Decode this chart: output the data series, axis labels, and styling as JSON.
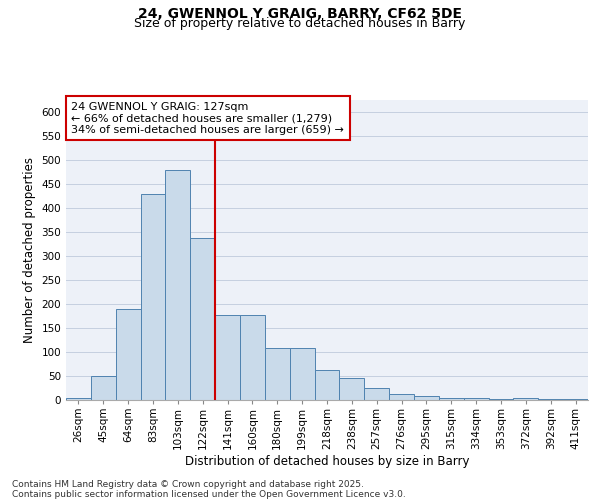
{
  "title1": "24, GWENNOL Y GRAIG, BARRY, CF62 5DE",
  "title2": "Size of property relative to detached houses in Barry",
  "xlabel": "Distribution of detached houses by size in Barry",
  "ylabel": "Number of detached properties",
  "categories": [
    "26sqm",
    "45sqm",
    "64sqm",
    "83sqm",
    "103sqm",
    "122sqm",
    "141sqm",
    "160sqm",
    "180sqm",
    "199sqm",
    "218sqm",
    "238sqm",
    "257sqm",
    "276sqm",
    "295sqm",
    "315sqm",
    "334sqm",
    "353sqm",
    "372sqm",
    "392sqm",
    "411sqm"
  ],
  "values": [
    5,
    50,
    190,
    430,
    480,
    338,
    178,
    178,
    108,
    108,
    62,
    45,
    25,
    12,
    8,
    5,
    5,
    3,
    5,
    3,
    3
  ],
  "bar_color": "#c9daea",
  "bar_edge_color": "#4f82b0",
  "vline_x": 5.5,
  "vline_color": "#cc0000",
  "annotation_text": "24 GWENNOL Y GRAIG: 127sqm\n← 66% of detached houses are smaller (1,279)\n34% of semi-detached houses are larger (659) →",
  "annotation_box_color": "#cc0000",
  "ylim": [
    0,
    625
  ],
  "yticks": [
    0,
    50,
    100,
    150,
    200,
    250,
    300,
    350,
    400,
    450,
    500,
    550,
    600
  ],
  "grid_color": "#c5cfe0",
  "background_color": "#edf1f8",
  "footnote": "Contains HM Land Registry data © Crown copyright and database right 2025.\nContains public sector information licensed under the Open Government Licence v3.0.",
  "title1_fontsize": 10,
  "title2_fontsize": 9,
  "xlabel_fontsize": 8.5,
  "ylabel_fontsize": 8.5,
  "tick_fontsize": 7.5,
  "annotation_fontsize": 8,
  "footnote_fontsize": 6.5
}
